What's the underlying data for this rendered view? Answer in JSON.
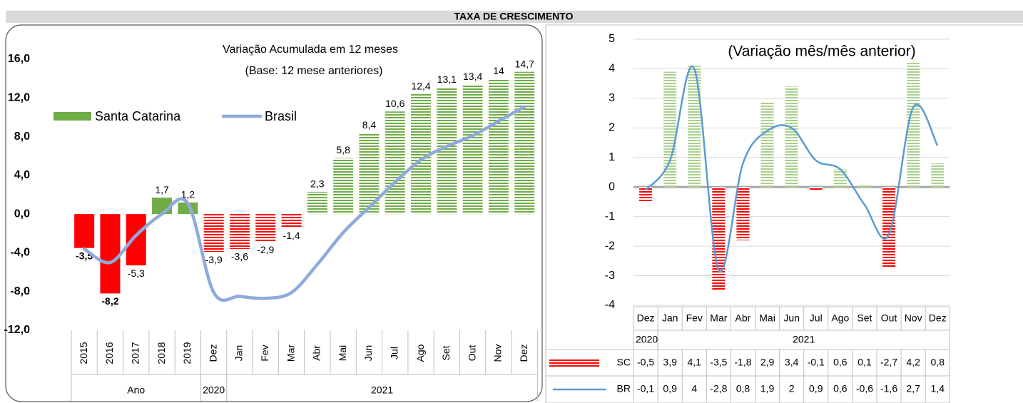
{
  "header": {
    "title": "TAXA DE CRESCIMENTO"
  },
  "chart_data": [
    {
      "type": "bar-line",
      "title": "Variação Acumulada em 12 meses",
      "subtitle": "(Base: 12 mese anteriores)",
      "categories": [
        "2015",
        "2016",
        "2017",
        "2018",
        "2019",
        "Dez",
        "Jan",
        "Fev",
        "Mar",
        "Abr",
        "Mai",
        "Jun",
        "Jul",
        "Ago",
        "Set",
        "Out",
        "Nov",
        "Dez"
      ],
      "groups": [
        {
          "label": "Ano",
          "span": 5
        },
        {
          "label": "2020",
          "span": 1
        },
        {
          "label": "2021",
          "span": 12
        }
      ],
      "series": [
        {
          "name": "Santa Catarina",
          "type": "bar",
          "color": "#70ad47",
          "negative_color": "#ff0000",
          "values": [
            -3.5,
            -8.2,
            -5.3,
            1.7,
            1.2,
            -3.9,
            -3.6,
            -2.9,
            -1.4,
            2.3,
            5.8,
            8.4,
            10.6,
            12.4,
            13.1,
            13.4,
            14,
            14.7
          ],
          "value_labels": [
            "-3,5",
            "-8,2",
            "-5,3",
            "1,7",
            "1,2",
            "-3,9",
            "-3,6",
            "-2,9",
            "-1,4",
            "2,3",
            "5,8",
            "8,4",
            "10,6",
            "12,4",
            "13,1",
            "13,4",
            "14",
            "14,7"
          ]
        },
        {
          "name": "Brasil",
          "type": "line",
          "color": "#8faadc",
          "values": [
            -3.6,
            -5.0,
            -2.2,
            0.0,
            1.1,
            -8.1,
            -8.5,
            -8.7,
            -8.1,
            -5.2,
            -1.9,
            0.7,
            3.3,
            5.6,
            7.0,
            8.1,
            9.6,
            11.1
          ]
        }
      ],
      "ylim": [
        -12,
        16
      ],
      "yticks": [
        {
          "value": -12,
          "label": "-12,0"
        },
        {
          "value": -8,
          "label": "-8,0"
        },
        {
          "value": -4,
          "label": "-4,0"
        },
        {
          "value": 0,
          "label": "0,0"
        },
        {
          "value": 4,
          "label": "4,0"
        },
        {
          "value": 8,
          "label": "8,0"
        },
        {
          "value": 12,
          "label": "12,0"
        },
        {
          "value": 16,
          "label": "16,0"
        }
      ],
      "legend": "left"
    },
    {
      "type": "bar-line-table",
      "title": "(Variação mês/mês anterior)",
      "categories": [
        "Dez",
        "Jan",
        "Fev",
        "Mar",
        "Abr",
        "Mai",
        "Jun",
        "Jul",
        "Ago",
        "Set",
        "Out",
        "Nov",
        "Dez"
      ],
      "groups": [
        {
          "label": "2020",
          "span": 1
        },
        {
          "label": "2021",
          "span": 12
        }
      ],
      "series": [
        {
          "name": "SC",
          "type": "bar",
          "color": "#a9d18e",
          "negative_color": "#ff0000",
          "values": [
            -0.5,
            3.9,
            4.1,
            -3.5,
            -1.8,
            2.9,
            3.4,
            -0.1,
            0.6,
            0.1,
            -2.7,
            4.2,
            0.8
          ],
          "value_labels": [
            "-0,5",
            "3,9",
            "4,1",
            "-3,5",
            "-1,8",
            "2,9",
            "3,4",
            "-0,1",
            "0,6",
            "0,1",
            "-2,7",
            "4,2",
            "0,8"
          ]
        },
        {
          "name": "BR",
          "type": "line",
          "color": "#5b9bd5",
          "values": [
            -0.1,
            0.9,
            4,
            -2.8,
            0.8,
            1.9,
            2,
            0.9,
            0.6,
            -0.6,
            -1.6,
            2.7,
            1.4
          ],
          "value_labels": [
            "-0,1",
            "0,9",
            "4",
            "-2,8",
            "0,8",
            "1,9",
            "2",
            "0,9",
            "0,6",
            "-0,6",
            "-1,6",
            "2,7",
            "1,4"
          ]
        }
      ],
      "ylim": [
        -4,
        5
      ],
      "yticks": [
        -4,
        -3,
        -2,
        -1,
        0,
        1,
        2,
        3,
        4,
        5
      ],
      "grid": true
    }
  ]
}
